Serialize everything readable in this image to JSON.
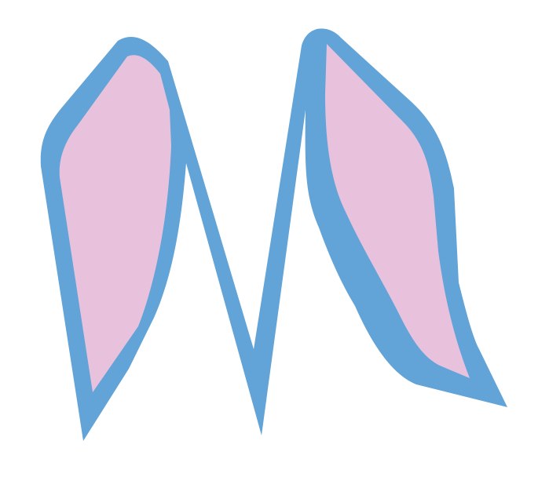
{
  "image": {
    "subject": "bunny-ears",
    "background_color": "#ffffff",
    "outline_color": "#62a4d8",
    "inner_ear_color": "#e8c2dd"
  }
}
